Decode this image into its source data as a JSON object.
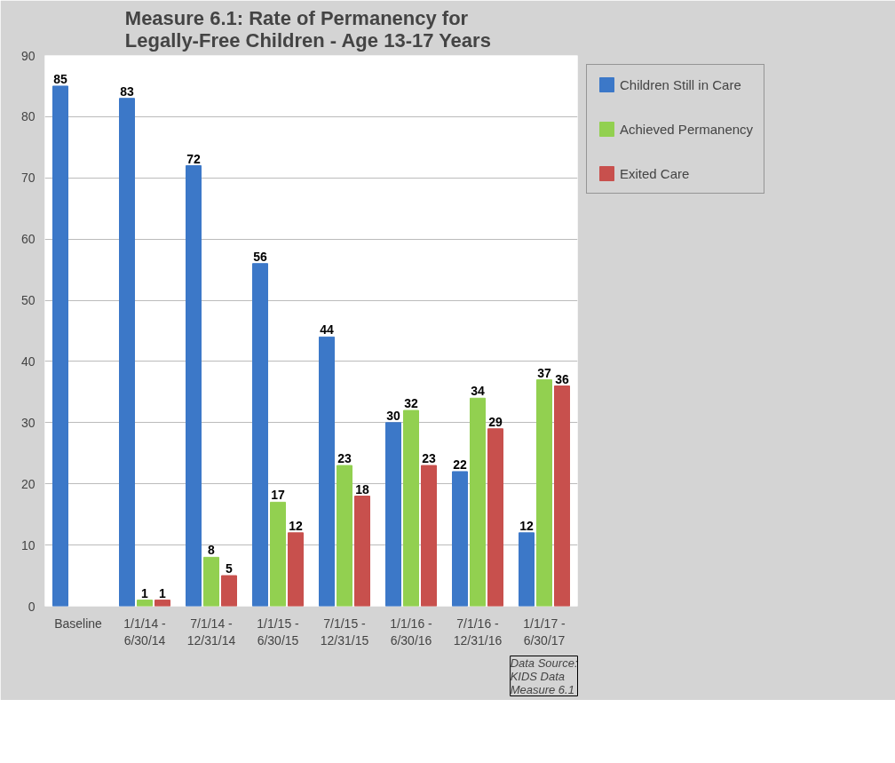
{
  "chart_data": {
    "type": "bar",
    "title": "Measure 6.1: Rate of Permanency for\nLegally-Free Children  - Age 13-17 Years",
    "categories": [
      "Baseline",
      "1/1/14 -\n6/30/14",
      "7/1/14 -\n12/31/14",
      "1/1/15 -\n6/30/15",
      "7/1/15 -\n12/31/15",
      "1/1/16 -\n6/30/16",
      "7/1/16 -\n12/31/16",
      "1/1/17 -\n6/30/17"
    ],
    "series": [
      {
        "name": "Children Still in Care",
        "color": "#3c78c8",
        "values": [
          85,
          83,
          72,
          56,
          44,
          30,
          22,
          12
        ]
      },
      {
        "name": "Achieved Permanency",
        "color": "#92d050",
        "values": [
          null,
          1,
          8,
          17,
          23,
          32,
          34,
          37
        ]
      },
      {
        "name": "Exited Care",
        "color": "#c8504d",
        "values": [
          null,
          1,
          5,
          12,
          18,
          23,
          29,
          36
        ]
      }
    ],
    "ylim": [
      0,
      90
    ],
    "yticks": [
      0,
      10,
      20,
      30,
      40,
      50,
      60,
      70,
      80,
      90
    ],
    "grid": "y",
    "legend": "right",
    "data_labels": true,
    "annotations": [
      "Data Source:\nKIDS Data\nMeasure 6.1"
    ]
  }
}
